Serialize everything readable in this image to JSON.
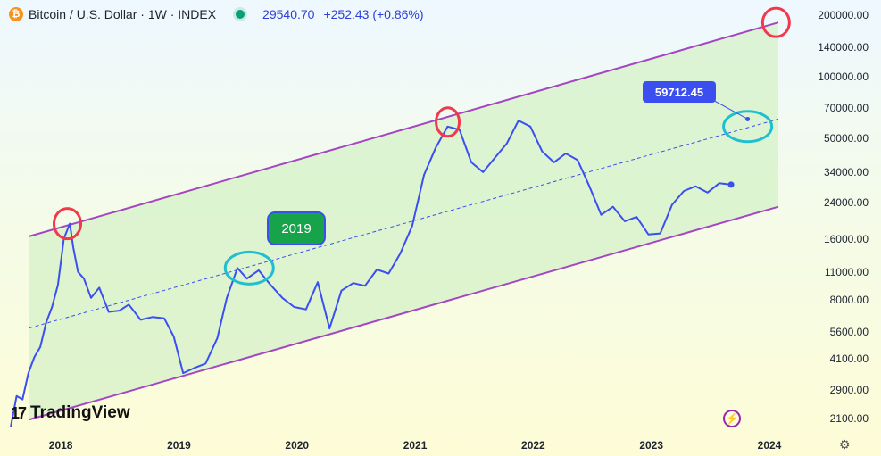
{
  "header": {
    "symbol": "Bitcoin / U.S. Dollar · 1W · INDEX",
    "price": "29540.70",
    "change": "+252.43 (+0.86%)",
    "btc_icon": "bitcoin-icon"
  },
  "branding": {
    "logo_text": "TradingView",
    "logo_mark": "17"
  },
  "colors": {
    "line": "#3b4ff0",
    "channel": "#a445c2",
    "fill": "#d6f2c8",
    "mid_line": "#3b4ff0",
    "red_circle": "#f2384b",
    "cyan_circle": "#1fbfcf",
    "label_bg": "#3b4ff0",
    "badge_bg": "#17a34a"
  },
  "annotations": {
    "badge_2019": "2019",
    "price_label": "59712.45"
  },
  "chart_data": {
    "type": "line",
    "title": "Bitcoin / U.S. Dollar · 1W · INDEX",
    "yscale": "log",
    "ylim": [
      1800,
      220000
    ],
    "xlim": [
      2017.5,
      2024.0
    ],
    "yticks": [
      "200000.00",
      "140000.00",
      "100000.00",
      "70000.00",
      "50000.00",
      "34000.00",
      "24000.00",
      "16000.00",
      "11000.00",
      "8000.00",
      "5600.00",
      "4100.00",
      "2900.00",
      "2100.00"
    ],
    "xticks": [
      "2018",
      "2019",
      "2020",
      "2021",
      "2022",
      "2023",
      "2024"
    ],
    "x": [
      2017.5,
      2017.55,
      2017.6,
      2017.65,
      2017.7,
      2017.75,
      2017.8,
      2017.85,
      2017.9,
      2017.95,
      2018.0,
      2018.03,
      2018.07,
      2018.12,
      2018.18,
      2018.25,
      2018.33,
      2018.42,
      2018.5,
      2018.6,
      2018.7,
      2018.8,
      2018.88,
      2018.96,
      2019.05,
      2019.15,
      2019.25,
      2019.33,
      2019.42,
      2019.5,
      2019.6,
      2019.7,
      2019.8,
      2019.9,
      2020.0,
      2020.1,
      2020.2,
      2020.3,
      2020.4,
      2020.5,
      2020.6,
      2020.7,
      2020.8,
      2020.9,
      2021.0,
      2021.1,
      2021.2,
      2021.3,
      2021.4,
      2021.5,
      2021.6,
      2021.7,
      2021.8,
      2021.9,
      2022.0,
      2022.1,
      2022.2,
      2022.3,
      2022.4,
      2022.5,
      2022.6,
      2022.7,
      2022.8,
      2022.9,
      2023.0,
      2023.1,
      2023.2,
      2023.3,
      2023.4,
      2023.5,
      2023.6
    ],
    "y": [
      1900,
      2700,
      2600,
      3500,
      4200,
      4700,
      6200,
      7400,
      9500,
      16000,
      19000,
      14500,
      11000,
      10200,
      8200,
      9200,
      7000,
      7100,
      7600,
      6400,
      6600,
      6500,
      5300,
      3500,
      3700,
      3900,
      5200,
      8200,
      11500,
      10200,
      11200,
      9500,
      8200,
      7400,
      7200,
      9800,
      5800,
      8900,
      9700,
      9400,
      11300,
      10800,
      13600,
      18500,
      33000,
      45000,
      57000,
      55000,
      38000,
      34000,
      40000,
      47000,
      61000,
      57000,
      43000,
      38000,
      42000,
      39000,
      29000,
      21000,
      23000,
      19500,
      20500,
      16800,
      17000,
      23500,
      27500,
      29000,
      27000,
      30000,
      29540.7
    ],
    "channel": {
      "upper": {
        "x": [
          2017.5,
          2024.0
        ],
        "y": [
          15500,
          185000
        ]
      },
      "lower": {
        "x": [
          2017.5,
          2024.0
        ],
        "y": [
          1950,
          23000
        ]
      },
      "middle": {
        "x": [
          2017.5,
          2024.0
        ],
        "y": [
          5500,
          62000
        ]
      }
    }
  }
}
